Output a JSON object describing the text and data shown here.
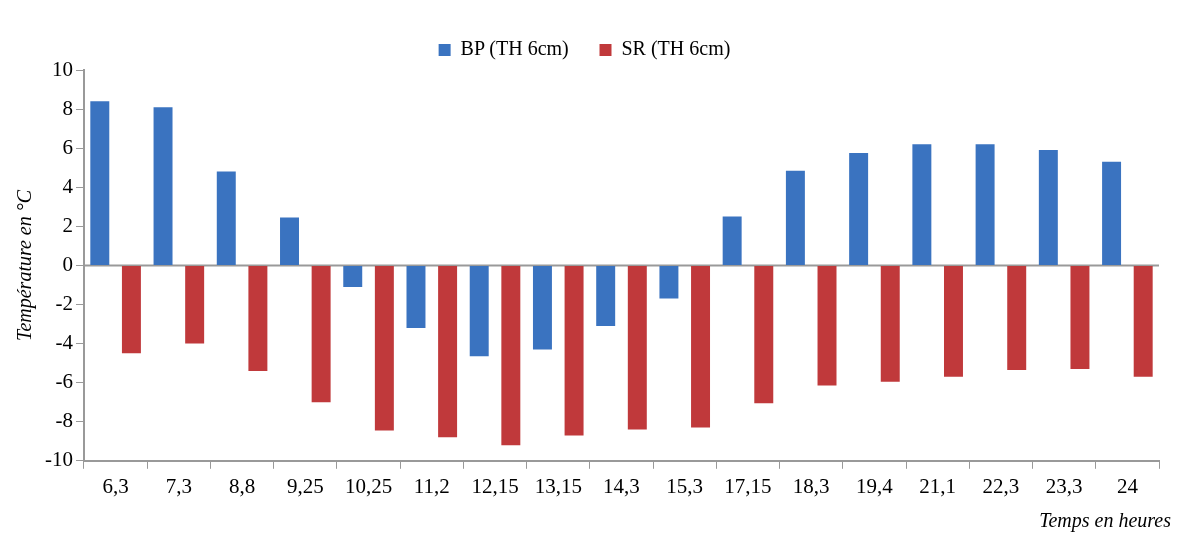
{
  "chart_data": {
    "type": "bar",
    "xlabel": "Temps en heures",
    "ylabel": "Température en °C",
    "categories": [
      "6,3",
      "7,3",
      "8,8",
      "9,25",
      "10,25",
      "11,2",
      "12,15",
      "13,15",
      "14,3",
      "15,3",
      "17,15",
      "18,3",
      "19,4",
      "21,1",
      "22,3",
      "23,3",
      "24"
    ],
    "series": [
      {
        "name": "BP (TH 6cm)",
        "color": "#3a73c0",
        "values": [
          8.4,
          8.1,
          4.8,
          2.45,
          -1.1,
          -3.2,
          -4.65,
          -4.3,
          -3.1,
          -1.7,
          2.5,
          4.85,
          5.75,
          6.2,
          6.2,
          5.9,
          5.3
        ]
      },
      {
        "name": "SR (TH 6cm)",
        "color": "#c0393b",
        "values": [
          -4.5,
          -4.0,
          -5.4,
          -7.0,
          -8.45,
          -8.8,
          -9.2,
          -8.7,
          -8.4,
          -8.3,
          -7.05,
          -6.15,
          -5.95,
          -5.7,
          -5.35,
          -5.3,
          -5.7
        ]
      }
    ],
    "ylim": [
      -10,
      10
    ],
    "yticks": [
      -10,
      -8,
      -6,
      -4,
      -2,
      0,
      2,
      4,
      6,
      8,
      10
    ],
    "ref_lines": [
      {
        "axis": "y",
        "value": 0,
        "color": "#999999"
      }
    ],
    "grid": false,
    "legend": "top"
  }
}
